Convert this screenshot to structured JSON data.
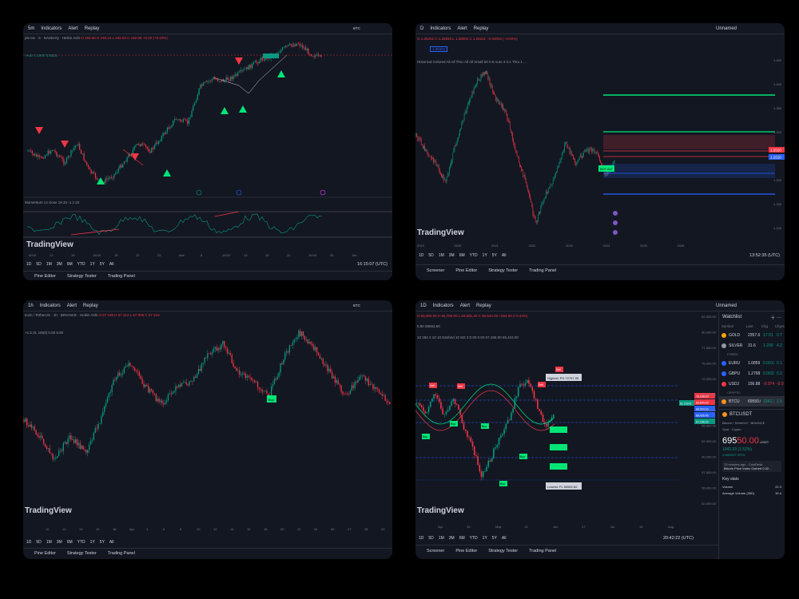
{
  "panel1": {
    "toolbar": {
      "interval": "5m",
      "indicators": "Indicators",
      "alert": "Alert",
      "replay": "Replay",
      "currency": "BTC"
    },
    "legend_symbol": "ple Inc · 5 · NASDAQ · Heikin Ashi",
    "legend_values": "O 192.66 H 193.10 L 192.53 C 192.88 +0.20 (+0.10%)",
    "legend_small": "+Adx 1.1900 3.8620",
    "oscillator_label": "Momentum 14 close 19.33 -1.2 22",
    "watermark": "TradingView",
    "xaxis": [
      "18:00",
      "12",
      "15",
      "18:00",
      "15",
      "22",
      "25",
      "Mar",
      "6",
      "19:00",
      "13",
      "15",
      "20",
      "19:00",
      "25",
      "Jun"
    ],
    "timeframes": [
      "1D",
      "5D",
      "1M",
      "3M",
      "6M",
      "YTD",
      "1Y",
      "5Y",
      "All"
    ],
    "time_text": "16:15:07 (UTC)",
    "bottom": [
      "Pine Editor",
      "Strategy Tester",
      "Trading Panel"
    ]
  },
  "panel2": {
    "toolbar": {
      "interval": "D",
      "indicators": "Indicators",
      "alert": "Alert",
      "replay": "Replay",
      "layout": "Unnamed"
    },
    "legend_values": "O 1.25251 H 1.25933 L 1.25004 C 1.25211 −0.00004 (−0.00%)",
    "legend_price": "1.25301",
    "legend_indicator": "Historical Colored All All Thru All All Small 50 0.5 Auto 3 0.1 Thru 1 ...",
    "price_tag_1": "1.2520",
    "price_tag_2": "1.2510",
    "label_text": "BOT ALT",
    "watermark": "TradingView",
    "xaxis": [
      "2019",
      "2020",
      "2021",
      "2022",
      "2023",
      "2024",
      "2025",
      "2026"
    ],
    "yaxis": [
      "1.450",
      "1.400",
      "1.350",
      "1.300",
      "1.250",
      "1.200",
      "1.150",
      "1.100"
    ],
    "timeframes": [
      "1D",
      "5D",
      "1M",
      "3M",
      "6M",
      "YTD",
      "1Y",
      "5Y",
      "All"
    ],
    "time_text": "13:52:35 (UTC)",
    "bottom": [
      "Screener",
      "Pine Editor",
      "Strategy Tester",
      "Trading Panel"
    ]
  },
  "panel3": {
    "toolbar": {
      "interval": "1h",
      "indicators": "Indicators",
      "alert": "Alert",
      "replay": "Replay",
      "currency": "BTC"
    },
    "legend_symbol": "tcoin / TetherUS · 1h · BINANCE · Heikin Ashi",
    "legend_values": "O 67 195 H 67 312 L 67 005 C 67 210",
    "legend_small": "+1.5 (5, 1860) 0.00 5.80",
    "label_text": "Buy",
    "watermark": "TradingView",
    "xaxis": [
      "10",
      "12",
      "14",
      "16",
      "18",
      "Apr",
      "4",
      "6",
      "8",
      "10",
      "12",
      "14",
      "16",
      "18",
      "20",
      "22",
      "24",
      "26",
      "27",
      "28",
      "29",
      "30"
    ],
    "timeframes": [
      "1D",
      "5D",
      "1M",
      "3M",
      "6M",
      "YTD",
      "1Y",
      "5Y",
      "All"
    ],
    "bottom": [
      "Pine Editor",
      "Strategy Tester",
      "Trading Panel"
    ]
  },
  "panel4": {
    "toolbar": {
      "interval": "1D",
      "indicators": "Indicators",
      "alert": "Alert",
      "replay": "Replay",
      "layout": "Unnamed"
    },
    "legend_values": "O 65,900.00 H 66,760.00 L 63,501.20 C 65,544.00 +284.00 (+0.44%)",
    "legend_small": "5.80  65563.60",
    "legend_indicator": "10 284 2 10 10 Dashed 10 M2 3  0.00  0.00  67,156.00  65,424.00",
    "highest": "Highest: PH 72797.99",
    "lowest": "Lowest: PL 56552.82",
    "sell_label": "Sell",
    "buy_label": "Buy",
    "price_tags": [
      "61 10241",
      "70,198.00",
      "69,544.49",
      "68,934.00",
      "68,426.45",
      "67,156.00"
    ],
    "yaxis": [
      "82,500.00",
      "80,000.00",
      "77,500.00",
      "75,000.00",
      "72,500.00",
      "70,000.00",
      "67,500.00",
      "65,000.00",
      "62,500.00",
      "60,000.00",
      "57,500.00",
      "55,000.00",
      "52,500.00"
    ],
    "xaxis": [
      "Apr",
      "15",
      "May",
      "13",
      "Jun",
      "17",
      "Jul",
      "15",
      "Aug"
    ],
    "watermark": "TradingView",
    "timeframes": [
      "1D",
      "5D",
      "1M",
      "3M",
      "6M",
      "YTD",
      "1Y",
      "5Y",
      "All"
    ],
    "time_text": "20:42:22 (UTC)",
    "bottom": [
      "Screener",
      "Pine Editor",
      "Strategy Tester",
      "Trading Panel"
    ],
    "watchlist": {
      "title": "Watchlist",
      "headers": [
        "Symbol",
        "Last",
        "Chg",
        "Chg%"
      ],
      "items": [
        {
          "sym": "GOLD",
          "last": "2357.6",
          "chg": "17.01",
          "pct": "0.7",
          "dir": "up",
          "color": "#f7a600"
        },
        {
          "sym": "SILVER",
          "last": "31.6",
          "chg": "1.290",
          "pct": "4.2",
          "dir": "up",
          "color": "#9598a1"
        }
      ],
      "forex_label": "FOREX",
      "forex": [
        {
          "sym": "EURU",
          "last": "1.0859",
          "chg": "0.00131",
          "pct": "0.1",
          "dir": "up",
          "color": "#2962ff"
        },
        {
          "sym": "GBPU",
          "last": "1.2768",
          "chg": "0.00339",
          "pct": "0.2",
          "dir": "up",
          "color": "#2962ff"
        },
        {
          "sym": "USDJ",
          "last": "156.88",
          "chg": "-0.074",
          "pct": "-0.0",
          "dir": "dn",
          "color": "#f23645"
        }
      ],
      "crypto_label": "CRYPTO",
      "crypto": [
        {
          "sym": "BTCU",
          "last": "69550.00",
          "chg": "1042.33",
          "pct": "1.5",
          "dir": "up",
          "color": "#f7931a"
        }
      ],
      "detail": {
        "symbol": "BTCUSDT",
        "name": "Bitcoin / TetherUS · BINANCE",
        "type": "Spot · Crypto",
        "price_main": "695",
        "price_frac": "50.00",
        "price_unit": "USDT",
        "change": "1042.33 (1.52%)",
        "status": "● MARKET OPEN",
        "news_time": "13 minutes ago · CoinDesk",
        "news": "Bitcoin Price Index Gained 0.52...",
        "keystats": "Key stats",
        "volume_label": "Volume",
        "volume": "21.3",
        "avgvol_label": "Average Volume (30D)",
        "avgvol": "30.4"
      }
    }
  }
}
